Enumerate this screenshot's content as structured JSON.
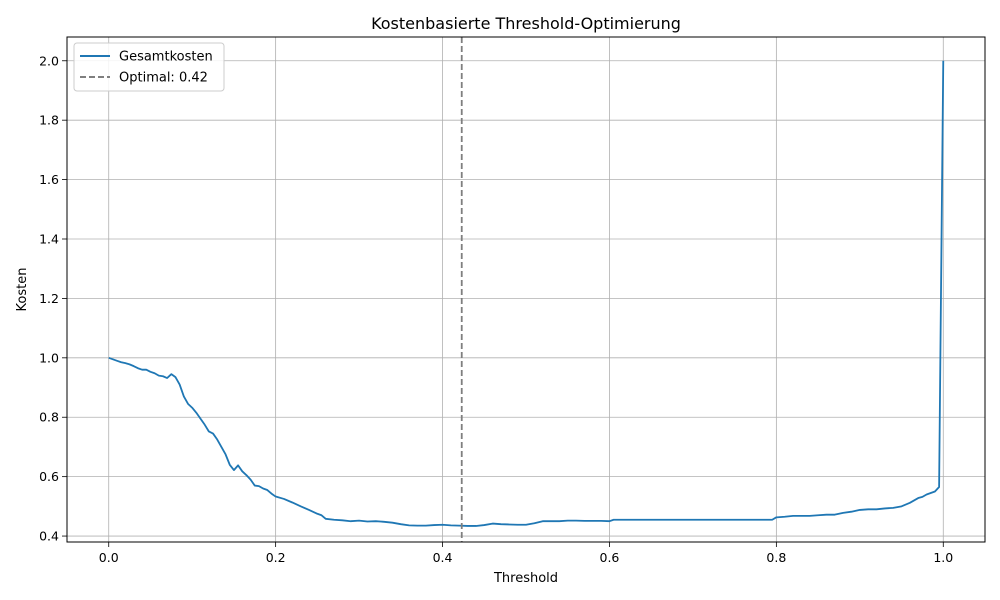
{
  "chart_data": {
    "type": "line",
    "title": "Kostenbasierte Threshold-Optimierung",
    "xlabel": "Threshold",
    "ylabel": "Kosten",
    "xlim": [
      -0.05,
      1.05
    ],
    "ylim": [
      0.38,
      2.08
    ],
    "xticks": [
      0.0,
      0.2,
      0.4,
      0.6,
      0.8,
      1.0
    ],
    "xtick_labels": [
      "0.0",
      "0.2",
      "0.4",
      "0.6",
      "0.8",
      "1.0"
    ],
    "yticks": [
      0.4,
      0.6,
      0.8,
      1.0,
      1.2,
      1.4,
      1.6,
      1.8,
      2.0
    ],
    "ytick_labels": [
      "0.4",
      "0.6",
      "0.8",
      "1.0",
      "1.2",
      "1.4",
      "1.6",
      "1.8",
      "2.0"
    ],
    "grid": true,
    "legend_position": "upper-left",
    "series": [
      {
        "name": "Gesamtkosten",
        "color": "#1f77b4",
        "x": [
          0.0,
          0.005,
          0.01,
          0.015,
          0.02,
          0.025,
          0.03,
          0.035,
          0.04,
          0.045,
          0.05,
          0.055,
          0.06,
          0.065,
          0.07,
          0.075,
          0.08,
          0.085,
          0.09,
          0.095,
          0.1,
          0.105,
          0.11,
          0.115,
          0.12,
          0.125,
          0.13,
          0.135,
          0.14,
          0.145,
          0.15,
          0.155,
          0.16,
          0.165,
          0.17,
          0.175,
          0.18,
          0.185,
          0.19,
          0.195,
          0.2,
          0.21,
          0.22,
          0.23,
          0.24,
          0.25,
          0.255,
          0.26,
          0.27,
          0.28,
          0.29,
          0.3,
          0.31,
          0.32,
          0.33,
          0.34,
          0.35,
          0.36,
          0.37,
          0.38,
          0.39,
          0.4,
          0.41,
          0.42,
          0.43,
          0.44,
          0.45,
          0.46,
          0.47,
          0.48,
          0.49,
          0.5,
          0.51,
          0.52,
          0.53,
          0.54,
          0.55,
          0.56,
          0.57,
          0.58,
          0.59,
          0.6,
          0.605,
          0.62,
          0.65,
          0.7,
          0.75,
          0.79,
          0.795,
          0.8,
          0.81,
          0.82,
          0.83,
          0.84,
          0.85,
          0.86,
          0.87,
          0.88,
          0.89,
          0.9,
          0.91,
          0.92,
          0.93,
          0.94,
          0.95,
          0.96,
          0.965,
          0.97,
          0.975,
          0.98,
          0.985,
          0.99,
          0.995,
          1.0
        ],
        "y": [
          1.0,
          0.995,
          0.99,
          0.985,
          0.982,
          0.978,
          0.972,
          0.965,
          0.96,
          0.96,
          0.953,
          0.948,
          0.94,
          0.938,
          0.932,
          0.945,
          0.935,
          0.91,
          0.87,
          0.845,
          0.832,
          0.815,
          0.795,
          0.775,
          0.752,
          0.745,
          0.725,
          0.7,
          0.675,
          0.64,
          0.622,
          0.638,
          0.618,
          0.605,
          0.59,
          0.57,
          0.568,
          0.56,
          0.555,
          0.543,
          0.533,
          0.525,
          0.513,
          0.5,
          0.488,
          0.475,
          0.47,
          0.458,
          0.455,
          0.453,
          0.45,
          0.452,
          0.449,
          0.45,
          0.448,
          0.445,
          0.44,
          0.436,
          0.435,
          0.435,
          0.437,
          0.438,
          0.436,
          0.435,
          0.434,
          0.434,
          0.437,
          0.442,
          0.44,
          0.439,
          0.438,
          0.438,
          0.443,
          0.45,
          0.45,
          0.45,
          0.452,
          0.452,
          0.451,
          0.451,
          0.451,
          0.45,
          0.455,
          0.455,
          0.455,
          0.455,
          0.455,
          0.455,
          0.455,
          0.463,
          0.465,
          0.468,
          0.468,
          0.468,
          0.47,
          0.472,
          0.472,
          0.478,
          0.482,
          0.488,
          0.49,
          0.49,
          0.493,
          0.495,
          0.5,
          0.512,
          0.52,
          0.528,
          0.532,
          0.54,
          0.545,
          0.55,
          0.565,
          2.0
        ]
      }
    ],
    "vline": {
      "name": "Optimal: 0.42",
      "x": 0.423,
      "color": "#7f7f7f",
      "style": "dashed"
    }
  }
}
